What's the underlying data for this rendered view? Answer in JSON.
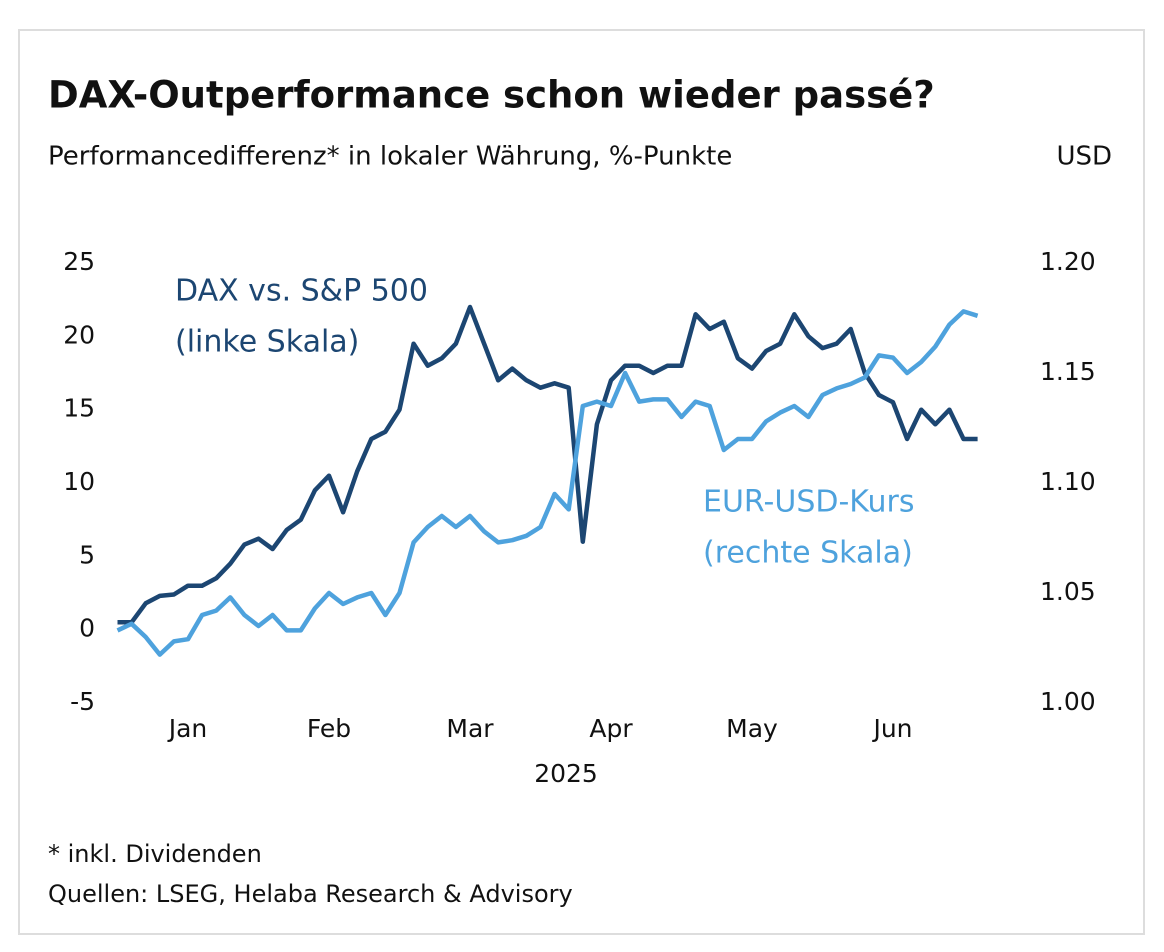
{
  "chart_data": {
    "type": "line",
    "title": "DAX-Outperformance schon wieder passé?",
    "subtitle": "Performancedifferenz* in lokaler Währung, %-Punkte",
    "y2label": "USD",
    "xlabel": "2025",
    "categories": [
      null,
      null,
      null,
      null,
      null,
      "Jan",
      null,
      null,
      null,
      null,
      null,
      null,
      null,
      null,
      null,
      "Feb",
      null,
      null,
      null,
      null,
      null,
      null,
      null,
      null,
      null,
      "Mar",
      null,
      null,
      null,
      null,
      null,
      null,
      null,
      null,
      null,
      "Apr",
      null,
      null,
      null,
      null,
      null,
      null,
      null,
      null,
      null,
      "May",
      null,
      null,
      null,
      null,
      null,
      null,
      null,
      null,
      null,
      "Jun",
      null,
      null,
      null,
      null,
      null,
      null
    ],
    "series": [
      {
        "name": "DAX vs. S&P 500",
        "scale_note": "(linke Skala)",
        "color": "#1c4672",
        "values": [
          0.5,
          0.5,
          1.8,
          2.3,
          2.4,
          3.0,
          3.0,
          3.5,
          4.5,
          5.8,
          6.2,
          5.5,
          6.8,
          7.5,
          9.5,
          10.5,
          8.0,
          10.8,
          13.0,
          13.5,
          15.0,
          19.5,
          18.0,
          18.5,
          19.5,
          22.0,
          19.5,
          17.0,
          17.8,
          17.0,
          16.5,
          16.8,
          16.5,
          6.0,
          14.0,
          17.0,
          18.0,
          18.0,
          17.5,
          18.0,
          18.0,
          21.5,
          20.5,
          21.0,
          18.5,
          17.8,
          19.0,
          19.5,
          21.5,
          20.0,
          19.2,
          19.5,
          20.5,
          17.5,
          16.0,
          15.5,
          13.0,
          15.0,
          14.0,
          15.0,
          13.0,
          13.0
        ]
      },
      {
        "name": "EUR-USD-Kurs",
        "scale_note": "(rechte Skala)",
        "color": "#4ea2dd",
        "axis": "y2",
        "values": [
          1.033,
          1.036,
          1.03,
          1.022,
          1.028,
          1.029,
          1.04,
          1.042,
          1.048,
          1.04,
          1.035,
          1.04,
          1.033,
          1.033,
          1.043,
          1.05,
          1.045,
          1.048,
          1.05,
          1.04,
          1.05,
          1.073,
          1.08,
          1.085,
          1.08,
          1.085,
          1.078,
          1.073,
          1.074,
          1.076,
          1.08,
          1.095,
          1.088,
          1.135,
          1.137,
          1.135,
          1.15,
          1.137,
          1.138,
          1.138,
          1.13,
          1.137,
          1.135,
          1.115,
          1.12,
          1.12,
          1.128,
          1.132,
          1.135,
          1.13,
          1.14,
          1.143,
          1.145,
          1.148,
          1.158,
          1.157,
          1.15,
          1.155,
          1.162,
          1.172,
          1.178,
          1.176
        ]
      }
    ],
    "ylim": [
      -5,
      25
    ],
    "yticks": [
      -5,
      0,
      5,
      10,
      15,
      20,
      25
    ],
    "y2lim": [
      1.0,
      1.2
    ],
    "y2ticks": [
      {
        "value": 1.0,
        "label": "1.00"
      },
      {
        "value": 1.05,
        "label": "1.05"
      },
      {
        "value": 1.1,
        "label": "1.10"
      },
      {
        "value": 1.15,
        "label": "1.15"
      },
      {
        "value": 1.2,
        "label": "1.20"
      }
    ],
    "grid": false,
    "footnotes": [
      "* inkl. Dividenden",
      "Quellen: LSEG, Helaba Research & Advisory"
    ]
  }
}
